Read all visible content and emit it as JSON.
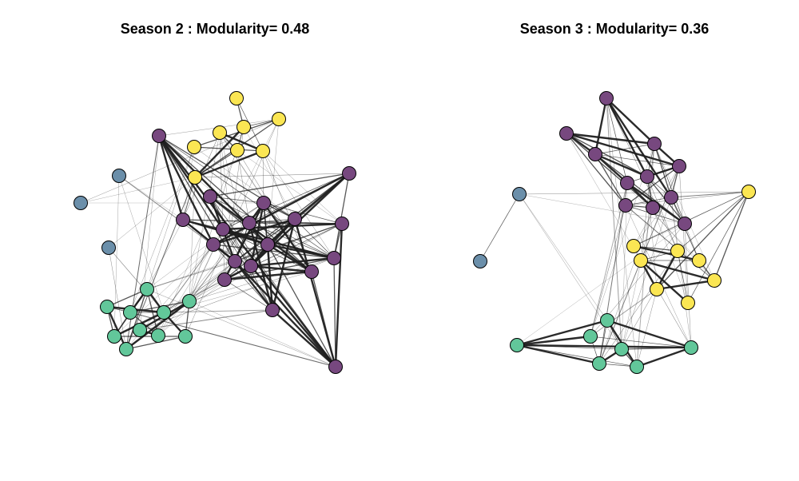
{
  "titles": {
    "left": "Season 2 : Modularity= 0.48",
    "right": "Season 3 : Modularity= 0.36"
  },
  "colors": {
    "purple": "#77487f",
    "yellow": "#fbe653",
    "blue": "#6b8faa",
    "green": "#62c79a",
    "edge": "#1f1f1f",
    "outline": "#000000"
  }
}
